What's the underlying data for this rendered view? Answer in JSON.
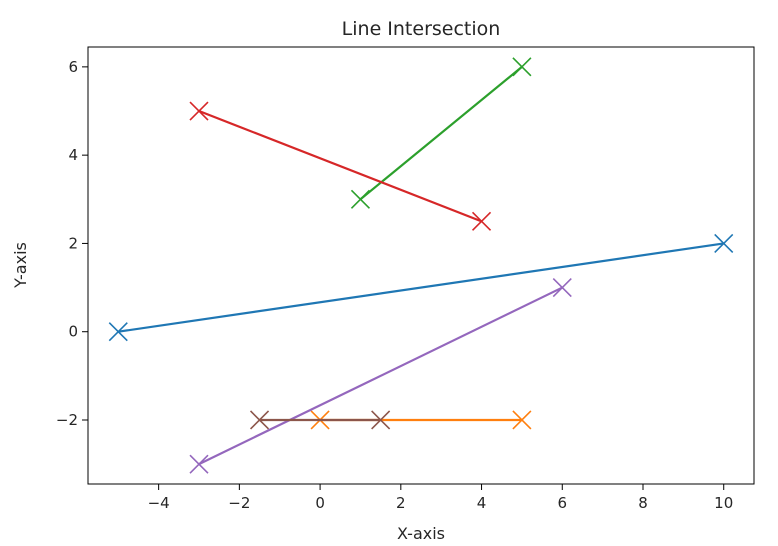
{
  "chart_data": {
    "type": "line",
    "title": "Line Intersection",
    "xlabel": "X-axis",
    "ylabel": "Y-axis",
    "xlim": [
      -5.75,
      10.75
    ],
    "ylim": [
      -3.45,
      6.45
    ],
    "grid": false,
    "x_ticks": [
      -4,
      -2,
      0,
      2,
      4,
      6,
      8,
      10
    ],
    "x_tick_labels": [
      "−4",
      "−2",
      "0",
      "2",
      "4",
      "6",
      "8",
      "10"
    ],
    "y_ticks": [
      -2,
      0,
      2,
      4,
      6
    ],
    "y_tick_labels": [
      "−2",
      "0",
      "2",
      "4",
      "6"
    ],
    "marker": "x",
    "series": [
      {
        "color": "#1f77b4",
        "points": [
          [
            -5,
            0
          ],
          [
            10,
            2
          ]
        ]
      },
      {
        "color": "#ff7f0e",
        "points": [
          [
            0,
            -2
          ],
          [
            5,
            -2
          ]
        ]
      },
      {
        "color": "#2ca02c",
        "points": [
          [
            1,
            3
          ],
          [
            5,
            6
          ]
        ]
      },
      {
        "color": "#d62728",
        "points": [
          [
            -3,
            5
          ],
          [
            4,
            2.5
          ]
        ]
      },
      {
        "color": "#9467bd",
        "points": [
          [
            -3,
            -3
          ],
          [
            6,
            1
          ]
        ]
      },
      {
        "color": "#8c564b",
        "points": [
          [
            -1.5,
            -2
          ],
          [
            1.5,
            -2
          ]
        ]
      }
    ]
  }
}
